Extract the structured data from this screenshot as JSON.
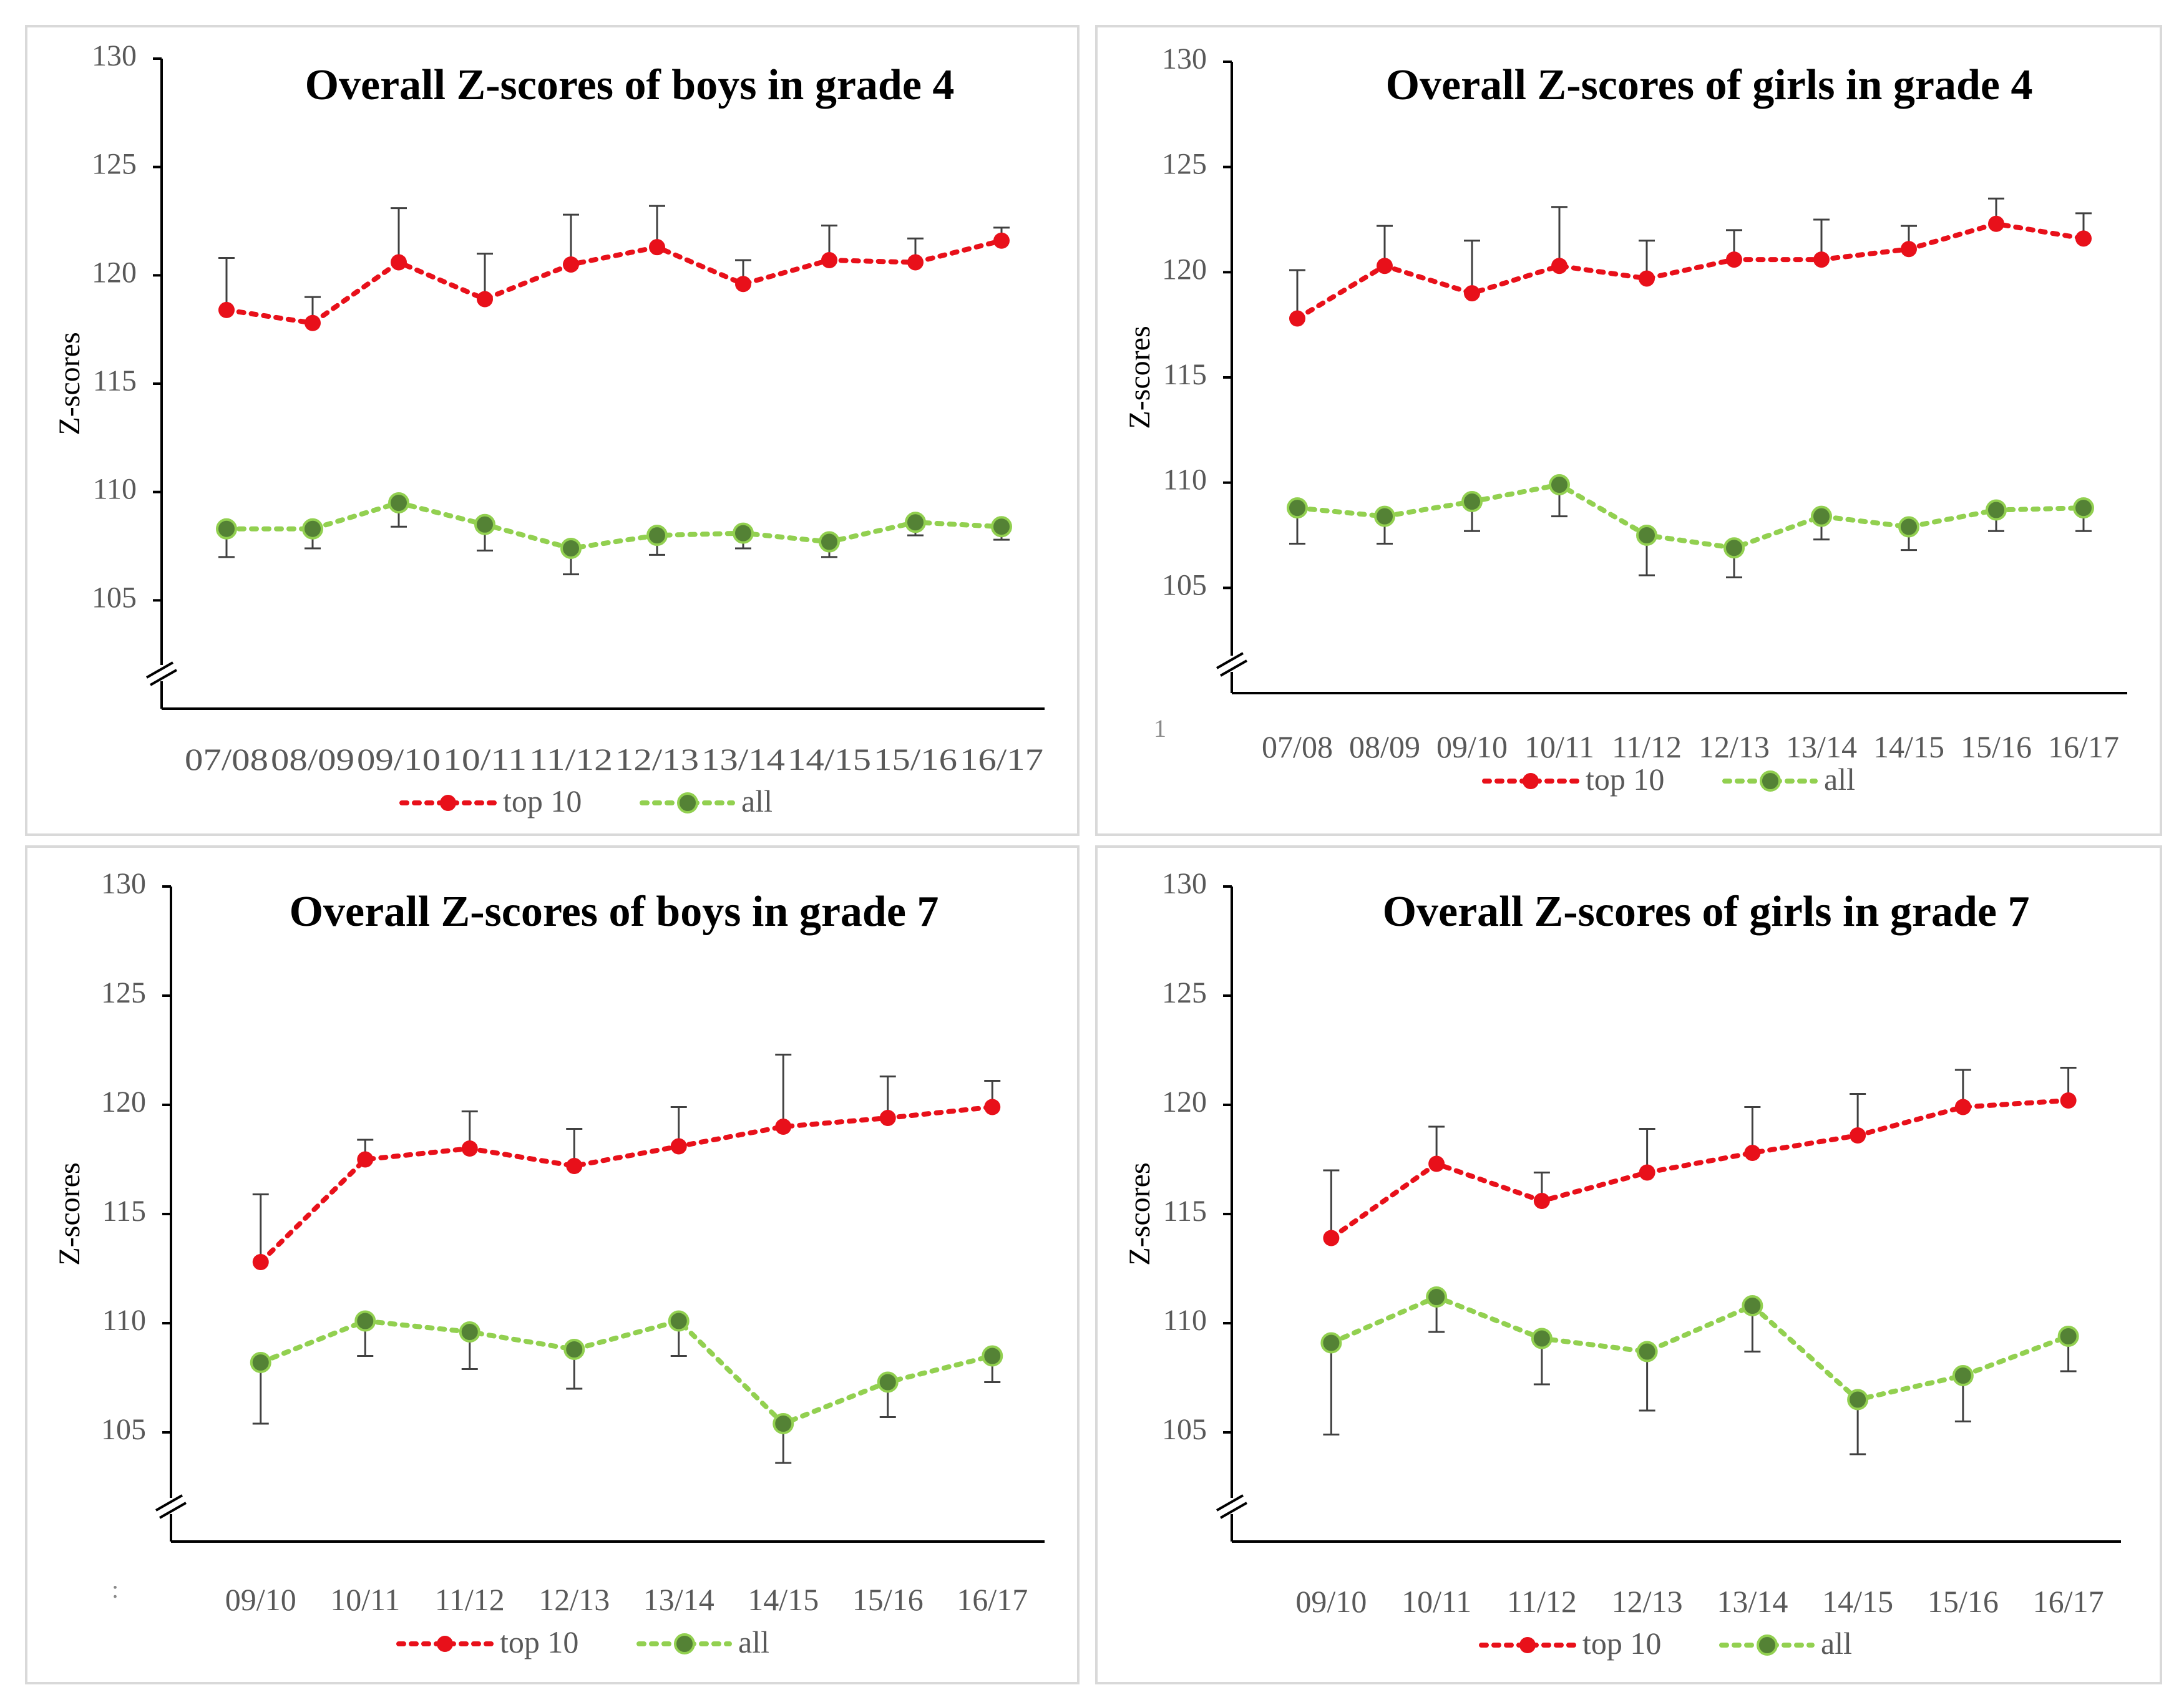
{
  "colors": {
    "top10": "#e8101a",
    "all_line": "#92d050",
    "all_marker": "#548235",
    "all_marker_stroke": "#92d050",
    "axis": "#000000",
    "errorbar": "#404040"
  },
  "chart_data": [
    {
      "type": "line",
      "title": "Overall Z-scores of boys in grade 4",
      "xlabel": "",
      "ylabel": "Z-scores",
      "ylim": [
        100,
        130
      ],
      "yticks": [
        105,
        110,
        115,
        120,
        125,
        130
      ],
      "axis_break": true,
      "categories": [
        "07/08",
        "08/09",
        "09/10",
        "10/11",
        "11/12",
        "12/13",
        "13/14",
        "14/15",
        "15/16",
        "16/17"
      ],
      "series": [
        {
          "name": "top 10",
          "values": [
            118.4,
            117.8,
            120.6,
            118.9,
            120.5,
            121.3,
            119.6,
            120.7,
            120.6,
            121.6
          ],
          "error_upper": [
            120.8,
            119.0,
            123.1,
            121.0,
            122.8,
            123.2,
            120.7,
            122.3,
            121.7,
            122.2
          ],
          "error_lower": null
        },
        {
          "name": "all",
          "values": [
            108.3,
            108.3,
            109.5,
            108.5,
            107.4,
            108.0,
            108.1,
            107.7,
            108.6,
            108.4
          ],
          "error_upper": null,
          "error_lower": [
            107.0,
            107.4,
            108.4,
            107.3,
            106.2,
            107.1,
            107.4,
            107.0,
            108.0,
            107.8
          ]
        }
      ],
      "legend": [
        "top 10",
        "all"
      ],
      "legend_position": "bottom",
      "tick_label_compact": true,
      "stray_text": ""
    },
    {
      "type": "line",
      "title": "Overall Z-scores of girls in grade 4",
      "xlabel": "",
      "ylabel": "Z-scores",
      "ylim": [
        100,
        130
      ],
      "yticks": [
        105,
        110,
        115,
        120,
        125,
        130
      ],
      "axis_break": true,
      "categories": [
        "07/08",
        "08/09",
        "09/10",
        "10/11",
        "11/12",
        "12/13",
        "13/14",
        "14/15",
        "15/16",
        "16/17"
      ],
      "series": [
        {
          "name": "top 10",
          "values": [
            117.8,
            120.3,
            119.0,
            120.3,
            119.7,
            120.6,
            120.6,
            121.1,
            122.3,
            121.6
          ],
          "error_upper": [
            120.1,
            122.2,
            121.5,
            123.1,
            121.5,
            122.0,
            122.5,
            122.2,
            123.5,
            122.8
          ],
          "error_lower": null
        },
        {
          "name": "all",
          "values": [
            108.8,
            108.4,
            109.1,
            109.9,
            107.5,
            106.9,
            108.4,
            107.9,
            108.7,
            108.8
          ],
          "error_upper": null,
          "error_lower": [
            107.1,
            107.1,
            107.7,
            108.4,
            105.6,
            105.5,
            107.3,
            106.8,
            107.7,
            107.7
          ]
        }
      ],
      "legend": [
        "top 10",
        "all"
      ],
      "legend_position": "bottom",
      "tick_label_compact": false,
      "stray_text": "1"
    },
    {
      "type": "line",
      "title": "Overall Z-scores of boys in grade 7",
      "xlabel": "",
      "ylabel": "Z-scores",
      "ylim": [
        100,
        130
      ],
      "yticks": [
        105,
        110,
        115,
        120,
        125,
        130
      ],
      "axis_break": true,
      "categories": [
        "09/10",
        "10/11",
        "11/12",
        "12/13",
        "13/14",
        "14/15",
        "15/16",
        "16/17"
      ],
      "series": [
        {
          "name": "top 10",
          "values": [
            112.8,
            117.5,
            118.0,
            117.2,
            118.1,
            119.0,
            119.4,
            119.9
          ],
          "error_upper": [
            115.9,
            118.4,
            119.7,
            118.9,
            119.9,
            122.3,
            121.3,
            121.1
          ],
          "error_lower": null
        },
        {
          "name": "all",
          "values": [
            108.2,
            110.1,
            109.6,
            108.8,
            110.1,
            105.4,
            107.3,
            108.5
          ],
          "error_upper": null,
          "error_lower": [
            105.4,
            108.5,
            107.9,
            107.0,
            108.5,
            103.6,
            105.7,
            107.3
          ]
        }
      ],
      "legend": [
        "top 10",
        "all"
      ],
      "legend_position": "bottom",
      "tick_label_compact": false,
      "stray_text": ":"
    },
    {
      "type": "line",
      "title": "Overall Z-scores of girls in grade 7",
      "xlabel": "",
      "ylabel": "Z-scores",
      "ylim": [
        100,
        130
      ],
      "yticks": [
        105,
        110,
        115,
        120,
        125,
        130
      ],
      "axis_break": true,
      "categories": [
        "09/10",
        "10/11",
        "11/12",
        "12/13",
        "13/14",
        "14/15",
        "15/16",
        "16/17"
      ],
      "series": [
        {
          "name": "top 10",
          "values": [
            113.9,
            117.3,
            115.6,
            116.9,
            117.8,
            118.6,
            119.9,
            120.2
          ],
          "error_upper": [
            117.0,
            119.0,
            116.9,
            118.9,
            119.9,
            120.5,
            121.6,
            121.7
          ],
          "error_lower": null
        },
        {
          "name": "all",
          "values": [
            109.1,
            111.2,
            109.3,
            108.7,
            110.8,
            106.5,
            107.6,
            109.4
          ],
          "error_upper": null,
          "error_lower": [
            104.9,
            109.6,
            107.2,
            106.0,
            108.7,
            104.0,
            105.5,
            107.8
          ]
        }
      ],
      "legend": [
        "top 10",
        "all"
      ],
      "legend_position": "bottom",
      "tick_label_compact": false,
      "stray_text": ""
    }
  ]
}
